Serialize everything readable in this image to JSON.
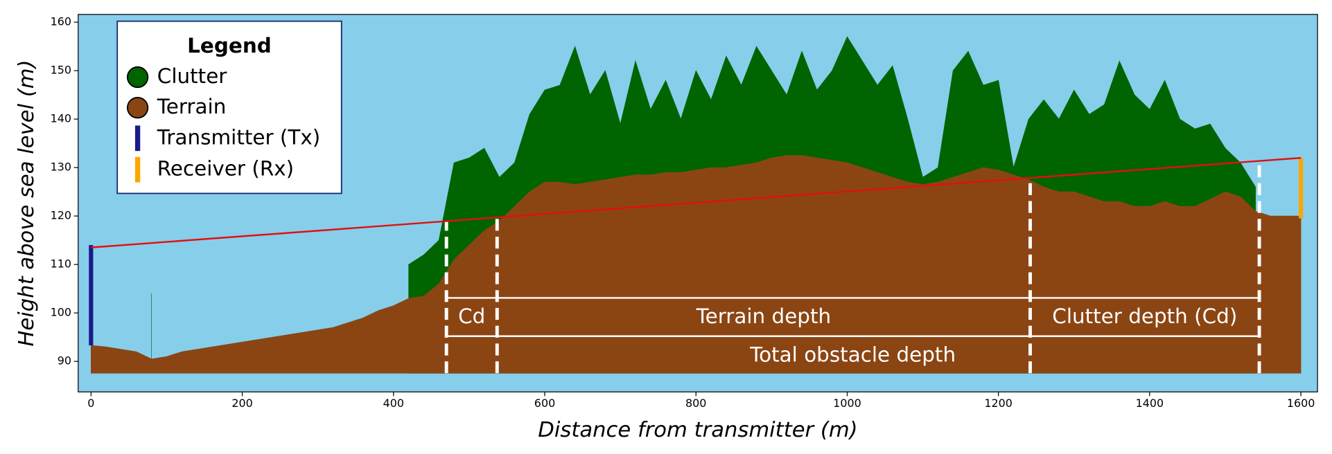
{
  "chart_data": {
    "type": "area",
    "xlabel": "Distance from transmitter (m)",
    "ylabel": "Height above sea level (m)",
    "xlim": [
      -17,
      1622
    ],
    "ylim": [
      83.7,
      161.6
    ],
    "xticks": [
      0,
      200,
      400,
      600,
      800,
      1000,
      1200,
      1400,
      1600
    ],
    "yticks": [
      90,
      100,
      110,
      120,
      130,
      140,
      150,
      160
    ],
    "background": "#87ceeb",
    "x": [
      0,
      20,
      40,
      60,
      80,
      100,
      120,
      140,
      160,
      180,
      200,
      220,
      240,
      260,
      280,
      300,
      320,
      340,
      360,
      380,
      400,
      420,
      440,
      460,
      480,
      500,
      520,
      540,
      560,
      580,
      600,
      620,
      640,
      660,
      680,
      700,
      720,
      740,
      760,
      780,
      800,
      820,
      840,
      860,
      880,
      900,
      920,
      940,
      960,
      980,
      1000,
      1020,
      1040,
      1060,
      1080,
      1100,
      1120,
      1140,
      1160,
      1180,
      1200,
      1220,
      1240,
      1260,
      1280,
      1300,
      1320,
      1340,
      1360,
      1380,
      1400,
      1420,
      1440,
      1460,
      1480,
      1500,
      1520,
      1540,
      1560,
      1580,
      1600
    ],
    "series": [
      {
        "name": "Clutter",
        "color": "#006400",
        "values": [
          null,
          null,
          null,
          null,
          104,
          null,
          null,
          null,
          null,
          null,
          null,
          null,
          null,
          null,
          null,
          null,
          null,
          null,
          null,
          null,
          null,
          110,
          112,
          115,
          131,
          132,
          134,
          128,
          131,
          141,
          146,
          147,
          155,
          145,
          150,
          139,
          152,
          142,
          148,
          140,
          150,
          144,
          153,
          147,
          155,
          150,
          145,
          154,
          146,
          150,
          157,
          152,
          147,
          151,
          140,
          128,
          130,
          150,
          154,
          147,
          148,
          130,
          140,
          144,
          140,
          146,
          141,
          143,
          152,
          145,
          142,
          148,
          140,
          138,
          139,
          134,
          131,
          126,
          null,
          null,
          null
        ]
      },
      {
        "name": "Terrain",
        "color": "#8b4513",
        "values": [
          93.3,
          93,
          92.5,
          92,
          90.5,
          91,
          92,
          92.5,
          93,
          93.5,
          94,
          94.5,
          95,
          95.5,
          96,
          96.5,
          97,
          98,
          99,
          100.5,
          101.5,
          103,
          103.5,
          106,
          111,
          114,
          117,
          119,
          122,
          125,
          127,
          127,
          126.5,
          127,
          127.5,
          128,
          128.5,
          128.5,
          129,
          129,
          129.5,
          130,
          130,
          130.5,
          131,
          132,
          132.5,
          132.5,
          132,
          131.5,
          131,
          130,
          129,
          128,
          127,
          126.5,
          127,
          128,
          129,
          130,
          129.5,
          128.5,
          127.5,
          126,
          125,
          125,
          124,
          123,
          123,
          122,
          122,
          123,
          122,
          122,
          123.5,
          125,
          124,
          121,
          120,
          120,
          120
        ]
      }
    ],
    "antennas": [
      {
        "name": "Transmitter (Tx)",
        "color": "#1a1a8c",
        "x": 0,
        "values": [
          93.3,
          114
        ]
      },
      {
        "name": "Receiver (Rx)",
        "color": "#ffa500",
        "x": 1600,
        "values": [
          119.5,
          132
        ]
      }
    ],
    "line_of_sight": {
      "color": "#e01010",
      "x": [
        0,
        1600
      ],
      "values": [
        113.5,
        132
      ]
    },
    "markers": [
      {
        "x": 470,
        "y": 119
      },
      {
        "x": 537,
        "y": 119.5
      },
      {
        "x": 1242,
        "y": 128
      },
      {
        "x": 1545,
        "y": 131
      }
    ],
    "depth_rows": [
      103.1,
      95.2
    ],
    "annotations": [
      {
        "text": "Cd",
        "x": [
          470,
          537
        ],
        "y": 99.1
      },
      {
        "text": "Terrain depth",
        "x": [
          537,
          1242
        ],
        "y": 99.1
      },
      {
        "text": "Clutter depth (Cd)",
        "x": [
          1242,
          1545
        ],
        "y": 99.1
      },
      {
        "text": "Total obstacle depth",
        "x": [
          470,
          1545
        ],
        "y": 91.2
      }
    ],
    "legend": {
      "title": "Legend",
      "position": "upper left"
    }
  }
}
